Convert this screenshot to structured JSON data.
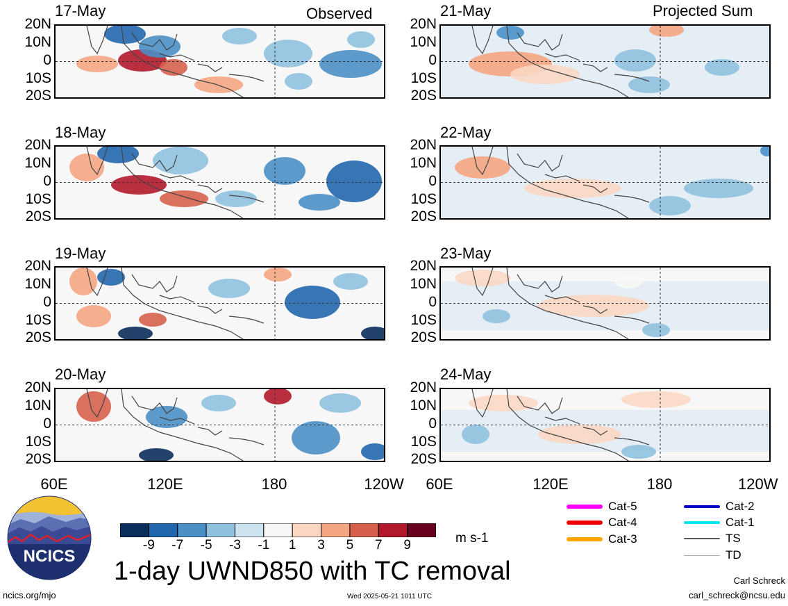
{
  "header": {
    "left_label": "Observed",
    "right_label": "Projected Sum"
  },
  "observed_dates": [
    "17-May",
    "18-May",
    "19-May",
    "20-May"
  ],
  "projected_dates": [
    "21-May",
    "22-May",
    "23-May",
    "24-May"
  ],
  "lat_labels": [
    "20N",
    "10N",
    "0",
    "10S",
    "20S"
  ],
  "lon_labels": [
    "60E",
    "120E",
    "180",
    "120W"
  ],
  "colorbar": {
    "colors": [
      "#0a2e5c",
      "#2166ac",
      "#4a8fc6",
      "#8fc1de",
      "#cde3f0",
      "#f7f7f7",
      "#fbd7c3",
      "#f4a582",
      "#d6604d",
      "#b2182b",
      "#67001f"
    ],
    "labels": [
      "-9",
      "-7",
      "-5",
      "-3",
      "-1",
      "1",
      "3",
      "5",
      "7",
      "9"
    ],
    "units": "m s-1"
  },
  "tc_legend": [
    {
      "label": "Cat-5",
      "color": "#ff00ff"
    },
    {
      "label": "Cat-4",
      "color": "#ee0000"
    },
    {
      "label": "Cat-3",
      "color": "#ffa500"
    },
    {
      "label": "Cat-2",
      "color": "#0000cd"
    },
    {
      "label": "Cat-1",
      "color": "#00e5ee"
    },
    {
      "label": "TS",
      "color": "#555555"
    },
    {
      "label": "TD",
      "color": "#aaaaaa"
    }
  ],
  "logo": {
    "text": "NCICS"
  },
  "title": "1-day UWND850 with TC removal",
  "footer": {
    "left": "ncics.org/mjo",
    "center": "Wed 2025-05-21 1011 UTC",
    "author": "Carl Schreck",
    "email": "carl_schreck@ncsu.edu"
  }
}
